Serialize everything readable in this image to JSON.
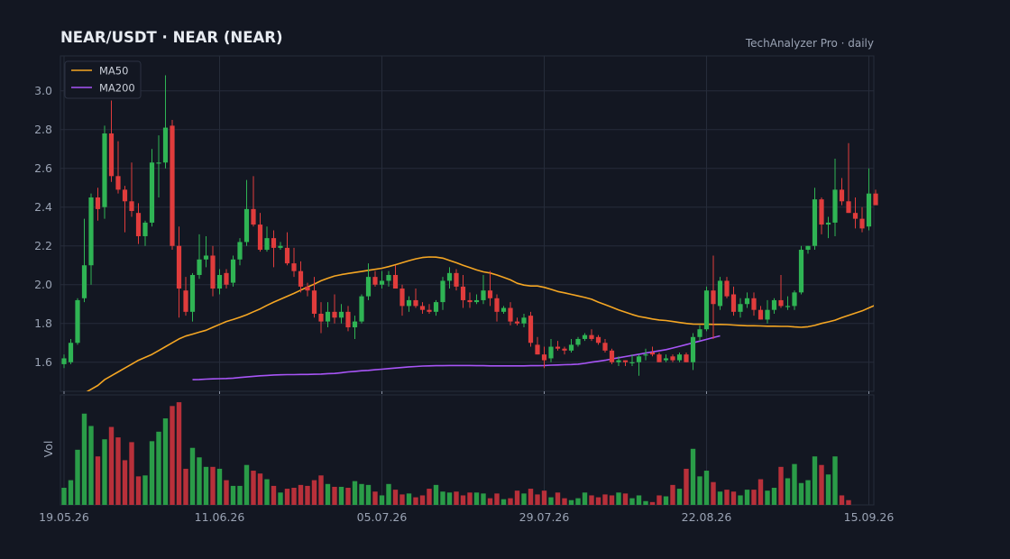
{
  "header": {
    "title": "NEAR/USDT  ·  NEAR (NEAR)",
    "subtitle": "TechAnalyzer Pro · daily"
  },
  "colors": {
    "background": "#131722",
    "grid": "#262c3a",
    "up": "#2fb454",
    "down": "#e03c3c",
    "ma50": "#f5a623",
    "ma200": "#a855f7"
  },
  "legend": [
    {
      "label": "MA50",
      "color": "#f5a623"
    },
    {
      "label": "MA200",
      "color": "#a855f7"
    }
  ],
  "volume_label": "Vol",
  "chart_data": {
    "type": "candlestick",
    "price_yticks": [
      "1.6",
      "1.8",
      "2.0",
      "2.2",
      "2.4",
      "2.6",
      "2.8",
      "3.0"
    ],
    "x_tick_labels": [
      "19.05.26",
      "11.06.26",
      "05.07.26",
      "29.07.26",
      "22.08.26",
      "15.09.26"
    ],
    "x_tick_days": [
      0,
      23,
      47,
      71,
      95,
      119
    ],
    "ylim": [
      1.45,
      3.18
    ],
    "ohlc": [
      [
        0,
        1.59,
        1.64,
        1.57,
        1.62
      ],
      [
        1,
        1.6,
        1.72,
        1.59,
        1.7
      ],
      [
        2,
        1.7,
        1.93,
        1.69,
        1.92
      ],
      [
        3,
        1.93,
        2.34,
        1.91,
        2.1
      ],
      [
        4,
        2.1,
        2.47,
        2.0,
        2.45
      ],
      [
        5,
        2.45,
        2.5,
        2.33,
        2.39
      ],
      [
        6,
        2.4,
        2.82,
        2.34,
        2.78
      ],
      [
        7,
        2.78,
        2.95,
        2.53,
        2.56
      ],
      [
        8,
        2.56,
        2.74,
        2.47,
        2.49
      ],
      [
        9,
        2.49,
        2.51,
        2.27,
        2.43
      ],
      [
        10,
        2.43,
        2.63,
        2.35,
        2.38
      ],
      [
        11,
        2.37,
        2.42,
        2.21,
        2.25
      ],
      [
        12,
        2.25,
        2.33,
        2.2,
        2.32
      ],
      [
        13,
        2.32,
        2.7,
        2.3,
        2.63
      ],
      [
        14,
        2.63,
        2.77,
        2.45,
        2.63
      ],
      [
        15,
        2.63,
        3.08,
        2.6,
        2.81
      ],
      [
        16,
        2.82,
        2.85,
        2.18,
        2.2
      ],
      [
        17,
        2.2,
        2.3,
        1.83,
        1.98
      ],
      [
        18,
        1.97,
        2.04,
        1.84,
        1.86
      ],
      [
        19,
        1.86,
        2.06,
        1.81,
        2.05
      ],
      [
        20,
        2.05,
        2.26,
        2.03,
        2.13
      ],
      [
        21,
        2.13,
        2.25,
        2.09,
        2.15
      ],
      [
        22,
        2.15,
        2.2,
        1.94,
        1.98
      ],
      [
        23,
        1.98,
        2.08,
        1.95,
        2.05
      ],
      [
        24,
        2.06,
        2.08,
        1.98,
        2.0
      ],
      [
        25,
        2.01,
        2.15,
        1.99,
        2.13
      ],
      [
        26,
        2.13,
        2.24,
        2.1,
        2.22
      ],
      [
        27,
        2.22,
        2.54,
        2.2,
        2.39
      ],
      [
        28,
        2.39,
        2.56,
        2.3,
        2.31
      ],
      [
        29,
        2.31,
        2.37,
        2.17,
        2.18
      ],
      [
        30,
        2.18,
        2.3,
        2.17,
        2.24
      ],
      [
        31,
        2.24,
        2.28,
        2.09,
        2.19
      ],
      [
        32,
        2.19,
        2.22,
        2.18,
        2.2
      ],
      [
        33,
        2.19,
        2.27,
        2.1,
        2.11
      ],
      [
        34,
        2.11,
        2.19,
        2.04,
        2.07
      ],
      [
        35,
        2.07,
        2.12,
        1.96,
        1.99
      ],
      [
        36,
        1.99,
        2.01,
        1.94,
        1.97
      ],
      [
        37,
        1.97,
        2.04,
        1.83,
        1.85
      ],
      [
        38,
        1.85,
        1.91,
        1.75,
        1.81
      ],
      [
        39,
        1.81,
        1.91,
        1.78,
        1.86
      ],
      [
        40,
        1.86,
        1.95,
        1.8,
        1.83
      ],
      [
        41,
        1.83,
        1.9,
        1.8,
        1.86
      ],
      [
        42,
        1.86,
        1.89,
        1.76,
        1.78
      ],
      [
        43,
        1.78,
        1.84,
        1.72,
        1.81
      ],
      [
        44,
        1.81,
        1.95,
        1.8,
        1.94
      ],
      [
        45,
        1.94,
        2.11,
        1.92,
        2.04
      ],
      [
        46,
        2.04,
        2.07,
        1.99,
        2.0
      ],
      [
        47,
        2.0,
        2.07,
        1.98,
        2.02
      ],
      [
        48,
        2.02,
        2.07,
        1.99,
        2.05
      ],
      [
        49,
        2.05,
        2.1,
        1.98,
        1.98
      ],
      [
        50,
        1.98,
        2.0,
        1.84,
        1.89
      ],
      [
        51,
        1.89,
        1.94,
        1.86,
        1.92
      ],
      [
        52,
        1.92,
        1.98,
        1.88,
        1.89
      ],
      [
        53,
        1.89,
        1.91,
        1.85,
        1.87
      ],
      [
        54,
        1.87,
        1.9,
        1.85,
        1.86
      ],
      [
        55,
        1.86,
        1.92,
        1.84,
        1.91
      ],
      [
        56,
        1.91,
        2.04,
        1.87,
        2.02
      ],
      [
        57,
        2.02,
        2.09,
        1.98,
        2.06
      ],
      [
        58,
        2.06,
        2.08,
        1.97,
        1.99
      ],
      [
        59,
        1.99,
        2.05,
        1.88,
        1.92
      ],
      [
        60,
        1.92,
        1.96,
        1.88,
        1.91
      ],
      [
        61,
        1.91,
        1.95,
        1.9,
        1.92
      ],
      [
        62,
        1.92,
        2.05,
        1.9,
        1.97
      ],
      [
        63,
        1.97,
        2.07,
        1.89,
        1.93
      ],
      [
        64,
        1.93,
        1.95,
        1.81,
        1.86
      ],
      [
        65,
        1.86,
        1.89,
        1.85,
        1.88
      ],
      [
        66,
        1.88,
        1.91,
        1.79,
        1.81
      ],
      [
        67,
        1.81,
        1.83,
        1.79,
        1.8
      ],
      [
        68,
        1.8,
        1.85,
        1.78,
        1.83
      ],
      [
        69,
        1.84,
        1.86,
        1.68,
        1.7
      ],
      [
        70,
        1.69,
        1.73,
        1.64,
        1.64
      ],
      [
        71,
        1.64,
        1.68,
        1.57,
        1.61
      ],
      [
        72,
        1.62,
        1.72,
        1.6,
        1.68
      ],
      [
        73,
        1.68,
        1.71,
        1.66,
        1.67
      ],
      [
        74,
        1.67,
        1.68,
        1.64,
        1.66
      ],
      [
        75,
        1.66,
        1.72,
        1.65,
        1.69
      ],
      [
        76,
        1.69,
        1.73,
        1.68,
        1.72
      ],
      [
        77,
        1.72,
        1.75,
        1.71,
        1.74
      ],
      [
        78,
        1.74,
        1.77,
        1.71,
        1.72
      ],
      [
        79,
        1.73,
        1.74,
        1.69,
        1.7
      ],
      [
        80,
        1.7,
        1.72,
        1.65,
        1.66
      ],
      [
        81,
        1.66,
        1.67,
        1.59,
        1.6
      ],
      [
        82,
        1.6,
        1.63,
        1.58,
        1.61
      ],
      [
        83,
        1.61,
        1.61,
        1.58,
        1.6
      ],
      [
        84,
        1.6,
        1.64,
        1.58,
        1.6
      ],
      [
        85,
        1.6,
        1.64,
        1.53,
        1.63
      ],
      [
        86,
        1.64,
        1.67,
        1.61,
        1.64
      ],
      [
        87,
        1.65,
        1.68,
        1.63,
        1.64
      ],
      [
        88,
        1.64,
        1.65,
        1.6,
        1.6
      ],
      [
        89,
        1.61,
        1.64,
        1.6,
        1.62
      ],
      [
        90,
        1.63,
        1.64,
        1.6,
        1.61
      ],
      [
        91,
        1.61,
        1.65,
        1.6,
        1.64
      ],
      [
        92,
        1.64,
        1.65,
        1.6,
        1.6
      ],
      [
        93,
        1.6,
        1.75,
        1.56,
        1.73
      ],
      [
        94,
        1.73,
        1.79,
        1.71,
        1.77
      ],
      [
        95,
        1.77,
        1.99,
        1.76,
        1.97
      ],
      [
        96,
        1.97,
        2.15,
        1.72,
        1.9
      ],
      [
        97,
        1.89,
        2.04,
        1.87,
        2.02
      ],
      [
        98,
        2.02,
        2.04,
        1.93,
        1.94
      ],
      [
        99,
        1.95,
        1.99,
        1.84,
        1.86
      ],
      [
        100,
        1.86,
        1.93,
        1.83,
        1.9
      ],
      [
        101,
        1.9,
        1.96,
        1.88,
        1.93
      ],
      [
        102,
        1.93,
        1.96,
        1.84,
        1.87
      ],
      [
        103,
        1.87,
        1.89,
        1.82,
        1.82
      ],
      [
        104,
        1.82,
        1.92,
        1.8,
        1.87
      ],
      [
        105,
        1.87,
        1.93,
        1.85,
        1.92
      ],
      [
        106,
        1.92,
        2.05,
        1.88,
        1.89
      ],
      [
        107,
        1.89,
        1.94,
        1.87,
        1.89
      ],
      [
        108,
        1.89,
        1.97,
        1.87,
        1.96
      ],
      [
        109,
        1.96,
        2.2,
        1.95,
        2.18
      ],
      [
        110,
        2.18,
        2.2,
        2.16,
        2.2
      ],
      [
        111,
        2.2,
        2.5,
        2.18,
        2.44
      ],
      [
        112,
        2.44,
        2.45,
        2.26,
        2.31
      ],
      [
        113,
        2.31,
        2.35,
        2.24,
        2.32
      ],
      [
        114,
        2.32,
        2.65,
        2.25,
        2.49
      ],
      [
        115,
        2.49,
        2.55,
        2.41,
        2.43
      ],
      [
        116,
        2.43,
        2.73,
        2.37,
        2.37
      ],
      [
        117,
        2.37,
        2.45,
        2.29,
        2.34
      ],
      [
        118,
        2.34,
        2.4,
        2.27,
        2.29
      ],
      [
        119,
        2.3,
        2.6,
        2.28,
        2.47
      ],
      [
        120,
        2.47,
        2.49,
        2.42,
        2.41
      ]
    ],
    "ma50_from_day": 3,
    "ma50": [
      1.44,
      1.46,
      1.48,
      1.51,
      1.53,
      1.55,
      1.57,
      1.59,
      1.61,
      1.625,
      1.64,
      1.66,
      1.68,
      1.7,
      1.72,
      1.735,
      1.745,
      1.755,
      1.765,
      1.78,
      1.795,
      1.81,
      1.82,
      1.832,
      1.845,
      1.86,
      1.875,
      1.893,
      1.91,
      1.925,
      1.94,
      1.955,
      1.972,
      1.988,
      2.003,
      2.02,
      2.033,
      2.045,
      2.052,
      2.058,
      2.063,
      2.068,
      2.074,
      2.079,
      2.085,
      2.093,
      2.103,
      2.113,
      2.124,
      2.133,
      2.14,
      2.143,
      2.142,
      2.137,
      2.125,
      2.113,
      2.1,
      2.088,
      2.076,
      2.066,
      2.06,
      2.05,
      2.038,
      2.025,
      2.007,
      1.998,
      1.993,
      1.993,
      1.986,
      1.976,
      1.965,
      1.958,
      1.95,
      1.942,
      1.934,
      1.925,
      1.91,
      1.897,
      1.884,
      1.87,
      1.858,
      1.846,
      1.836,
      1.83,
      1.823,
      1.818,
      1.815,
      1.81,
      1.805,
      1.8,
      1.797,
      1.796,
      1.796,
      1.795,
      1.795,
      1.794,
      1.792,
      1.79,
      1.788,
      1.788,
      1.787,
      1.786,
      1.786,
      1.785,
      1.785,
      1.782,
      1.78,
      1.783,
      1.79,
      1.8,
      1.808,
      1.817,
      1.83,
      1.842,
      1.853,
      1.865,
      1.88,
      1.895
    ],
    "ma200_from_day": 19,
    "ma200": [
      1.51,
      1.511,
      1.513,
      1.514,
      1.515,
      1.516,
      1.518,
      1.521,
      1.524,
      1.527,
      1.53,
      1.532,
      1.534,
      1.535,
      1.536,
      1.536,
      1.537,
      1.537,
      1.538,
      1.539,
      1.541,
      1.542,
      1.546,
      1.55,
      1.553,
      1.556,
      1.558,
      1.561,
      1.564,
      1.567,
      1.57,
      1.573,
      1.576,
      1.578,
      1.58,
      1.581,
      1.582,
      1.582,
      1.583,
      1.583,
      1.583,
      1.583,
      1.582,
      1.582,
      1.581,
      1.581,
      1.581,
      1.581,
      1.581,
      1.581,
      1.582,
      1.582,
      1.583,
      1.585,
      1.586,
      1.587,
      1.588,
      1.59,
      1.594,
      1.6,
      1.605,
      1.61,
      1.617,
      1.623,
      1.629,
      1.635,
      1.641,
      1.647,
      1.653,
      1.659,
      1.665,
      1.673,
      1.682,
      1.691,
      1.7,
      1.709,
      1.718,
      1.727,
      1.736
    ],
    "volume": [
      18,
      26,
      58,
      96,
      83,
      51,
      69,
      82,
      71,
      47,
      66,
      30,
      31,
      67,
      77,
      91,
      104,
      108,
      38,
      60,
      50,
      40,
      40,
      38,
      26,
      20,
      20,
      42,
      36,
      33,
      27,
      20,
      13,
      17,
      18,
      21,
      20,
      26,
      31,
      22,
      19,
      19,
      18,
      25,
      22,
      21,
      14,
      10,
      22,
      16,
      11,
      12,
      8,
      10,
      17,
      21,
      14,
      13,
      14,
      10,
      13,
      13,
      12,
      7,
      12,
      6,
      7,
      15,
      12,
      17,
      11,
      15,
      8,
      13,
      7,
      5,
      7,
      13,
      10,
      8,
      11,
      10,
      13,
      12,
      7,
      10,
      4,
      3,
      10,
      9,
      21,
      17,
      38,
      59,
      30,
      36,
      24,
      14,
      16,
      14,
      10,
      16,
      16,
      27,
      15,
      18,
      40,
      28,
      43,
      23,
      26,
      51,
      42,
      32,
      51,
      10,
      5
    ],
    "volume_ymax": 110
  }
}
